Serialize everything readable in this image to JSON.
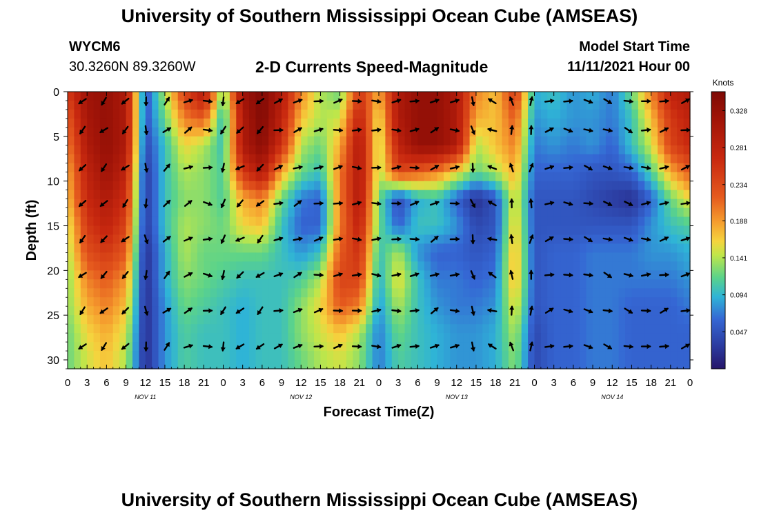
{
  "header": {
    "title": "University of Southern Mississippi Ocean Cube (AMSEAS)",
    "station_id": "WYCM6",
    "coordinates": "30.3260N  89.3260W",
    "chart_title": "2-D Currents Speed-Magnitude",
    "model_start_label": "Model Start Time",
    "model_start_value": "11/11/2021 Hour 00"
  },
  "footer": {
    "title": "University of Southern Mississippi Ocean Cube (AMSEAS)"
  },
  "chart_data": {
    "type": "heatmap",
    "xlabel": "Forecast Time(Z)",
    "ylabel": "Depth (ft)",
    "x_tick_values": [
      0,
      3,
      6,
      9,
      12,
      15,
      18,
      21,
      24,
      27,
      30,
      33,
      36,
      39,
      42,
      45,
      48,
      51,
      54,
      57,
      60,
      63,
      66,
      69,
      72,
      75,
      78,
      81,
      84,
      87,
      90,
      93,
      96
    ],
    "x_tick_labels": [
      "0",
      "3",
      "6",
      "9",
      "12",
      "15",
      "18",
      "21",
      "0",
      "3",
      "6",
      "9",
      "12",
      "15",
      "18",
      "21",
      "0",
      "3",
      "6",
      "9",
      "12",
      "15",
      "18",
      "21",
      "0",
      "3",
      "6",
      "9",
      "12",
      "15",
      "18",
      "21",
      "0"
    ],
    "xlim": [
      0,
      96
    ],
    "y_ticks": [
      0,
      5,
      10,
      15,
      20,
      25,
      30
    ],
    "ylim": [
      0,
      31
    ],
    "day_labels": [
      {
        "label": "NOV 11",
        "hour": 12
      },
      {
        "label": "NOV 12",
        "hour": 36
      },
      {
        "label": "NOV 13",
        "hour": 60
      },
      {
        "label": "NOV 14",
        "hour": 84
      }
    ],
    "colorbar": {
      "label": "Knots",
      "ticks": [
        0.047,
        0.094,
        0.141,
        0.188,
        0.234,
        0.281,
        0.328
      ],
      "range": [
        0.0,
        0.352
      ]
    },
    "arrow_depths": [
      0.6,
      4.3,
      8.5,
      12.5,
      16.5,
      20.5,
      24.5,
      28.5
    ],
    "arrow_hours": [
      2.3,
      5.6,
      8.9,
      12.1,
      15.3,
      18.6,
      21.6,
      24.0,
      26.6,
      29.7,
      32.5,
      35.5,
      38.7,
      41.7,
      44.6,
      47.6,
      50.7,
      53.5,
      56.6,
      59.7,
      62.5,
      65.5,
      68.5,
      71.5,
      74.3,
      77.2,
      80.3,
      83.3,
      86.5,
      89.2,
      92.0,
      95.3
    ],
    "speed_grid_hours": [
      0,
      3,
      6,
      9,
      12,
      15,
      18,
      21,
      24,
      27,
      30,
      33,
      36,
      39,
      42,
      45,
      48,
      51,
      54,
      57,
      60,
      63,
      66,
      69,
      72,
      75,
      78,
      81,
      84,
      87,
      90,
      93,
      96
    ],
    "speed_grid_depths": [
      0,
      3,
      6,
      9,
      12,
      15,
      18,
      21,
      24,
      27,
      30,
      31
    ],
    "speed_grid": [
      [
        0.25,
        0.32,
        0.33,
        0.3,
        0.05,
        0.14,
        0.24,
        0.3,
        0.12,
        0.32,
        0.35,
        0.3,
        0.2,
        0.14,
        0.12,
        0.25,
        0.18,
        0.3,
        0.33,
        0.33,
        0.3,
        0.2,
        0.17,
        0.25,
        0.09,
        0.1,
        0.08,
        0.09,
        0.07,
        0.12,
        0.2,
        0.28,
        0.3
      ],
      [
        0.22,
        0.31,
        0.33,
        0.3,
        0.05,
        0.12,
        0.2,
        0.22,
        0.09,
        0.3,
        0.35,
        0.28,
        0.17,
        0.14,
        0.15,
        0.28,
        0.15,
        0.3,
        0.33,
        0.33,
        0.3,
        0.18,
        0.17,
        0.22,
        0.08,
        0.09,
        0.08,
        0.08,
        0.07,
        0.1,
        0.17,
        0.25,
        0.28
      ],
      [
        0.2,
        0.3,
        0.33,
        0.3,
        0.04,
        0.1,
        0.16,
        0.14,
        0.1,
        0.3,
        0.34,
        0.26,
        0.14,
        0.12,
        0.18,
        0.3,
        0.14,
        0.28,
        0.33,
        0.33,
        0.3,
        0.14,
        0.17,
        0.2,
        0.07,
        0.08,
        0.07,
        0.08,
        0.06,
        0.1,
        0.15,
        0.24,
        0.27
      ],
      [
        0.18,
        0.28,
        0.32,
        0.28,
        0.03,
        0.1,
        0.14,
        0.13,
        0.11,
        0.25,
        0.3,
        0.18,
        0.12,
        0.1,
        0.2,
        0.3,
        0.14,
        0.24,
        0.22,
        0.2,
        0.16,
        0.12,
        0.14,
        0.18,
        0.06,
        0.06,
        0.06,
        0.05,
        0.05,
        0.06,
        0.11,
        0.18,
        0.22
      ],
      [
        0.17,
        0.27,
        0.3,
        0.26,
        0.03,
        0.1,
        0.13,
        0.13,
        0.11,
        0.18,
        0.2,
        0.12,
        0.07,
        0.06,
        0.2,
        0.3,
        0.12,
        0.04,
        0.09,
        0.1,
        0.06,
        0.02,
        0.05,
        0.16,
        0.05,
        0.05,
        0.05,
        0.04,
        0.03,
        0.02,
        0.06,
        0.12,
        0.16
      ],
      [
        0.15,
        0.25,
        0.28,
        0.24,
        0.03,
        0.1,
        0.14,
        0.13,
        0.12,
        0.16,
        0.17,
        0.1,
        0.06,
        0.06,
        0.2,
        0.28,
        0.12,
        0.06,
        0.1,
        0.1,
        0.08,
        0.04,
        0.05,
        0.17,
        0.05,
        0.05,
        0.05,
        0.05,
        0.05,
        0.05,
        0.08,
        0.1,
        0.11
      ],
      [
        0.14,
        0.23,
        0.25,
        0.22,
        0.02,
        0.09,
        0.14,
        0.12,
        0.12,
        0.12,
        0.12,
        0.1,
        0.08,
        0.1,
        0.22,
        0.26,
        0.1,
        0.14,
        0.08,
        0.06,
        0.06,
        0.05,
        0.06,
        0.18,
        0.05,
        0.06,
        0.06,
        0.07,
        0.07,
        0.07,
        0.08,
        0.08,
        0.09
      ],
      [
        0.13,
        0.2,
        0.22,
        0.19,
        0.02,
        0.09,
        0.13,
        0.12,
        0.11,
        0.1,
        0.1,
        0.1,
        0.11,
        0.14,
        0.24,
        0.24,
        0.09,
        0.16,
        0.1,
        0.07,
        0.07,
        0.06,
        0.07,
        0.18,
        0.05,
        0.06,
        0.06,
        0.07,
        0.07,
        0.07,
        0.07,
        0.07,
        0.08
      ],
      [
        0.13,
        0.18,
        0.2,
        0.17,
        0.02,
        0.08,
        0.12,
        0.11,
        0.1,
        0.09,
        0.1,
        0.1,
        0.13,
        0.16,
        0.22,
        0.2,
        0.08,
        0.14,
        0.1,
        0.08,
        0.07,
        0.07,
        0.08,
        0.16,
        0.05,
        0.06,
        0.06,
        0.07,
        0.07,
        0.06,
        0.06,
        0.06,
        0.07
      ],
      [
        0.12,
        0.16,
        0.18,
        0.15,
        0.02,
        0.08,
        0.11,
        0.1,
        0.1,
        0.09,
        0.1,
        0.1,
        0.13,
        0.15,
        0.17,
        0.14,
        0.07,
        0.12,
        0.1,
        0.09,
        0.08,
        0.08,
        0.09,
        0.14,
        0.04,
        0.06,
        0.06,
        0.07,
        0.07,
        0.06,
        0.06,
        0.06,
        0.06
      ],
      [
        0.12,
        0.15,
        0.17,
        0.14,
        0.02,
        0.08,
        0.11,
        0.1,
        0.1,
        0.09,
        0.1,
        0.1,
        0.12,
        0.14,
        0.15,
        0.13,
        0.07,
        0.11,
        0.1,
        0.09,
        0.08,
        0.08,
        0.09,
        0.13,
        0.04,
        0.06,
        0.06,
        0.07,
        0.07,
        0.06,
        0.06,
        0.06,
        0.06
      ],
      [
        0.12,
        0.15,
        0.17,
        0.14,
        0.02,
        0.08,
        0.11,
        0.1,
        0.1,
        0.09,
        0.1,
        0.1,
        0.12,
        0.14,
        0.15,
        0.13,
        0.07,
        0.11,
        0.1,
        0.09,
        0.08,
        0.08,
        0.09,
        0.13,
        0.04,
        0.06,
        0.06,
        0.07,
        0.07,
        0.06,
        0.06,
        0.06,
        0.06
      ]
    ],
    "direction_columns_deg": [
      225,
      225,
      225,
      225,
      180,
      45,
      60,
      70,
      200,
      240,
      225,
      45,
      70,
      80,
      80,
      90,
      90,
      85,
      80,
      60,
      90,
      180,
      315,
      0,
      10,
      90,
      100,
      110,
      110,
      110,
      80,
      70,
      75
    ]
  }
}
